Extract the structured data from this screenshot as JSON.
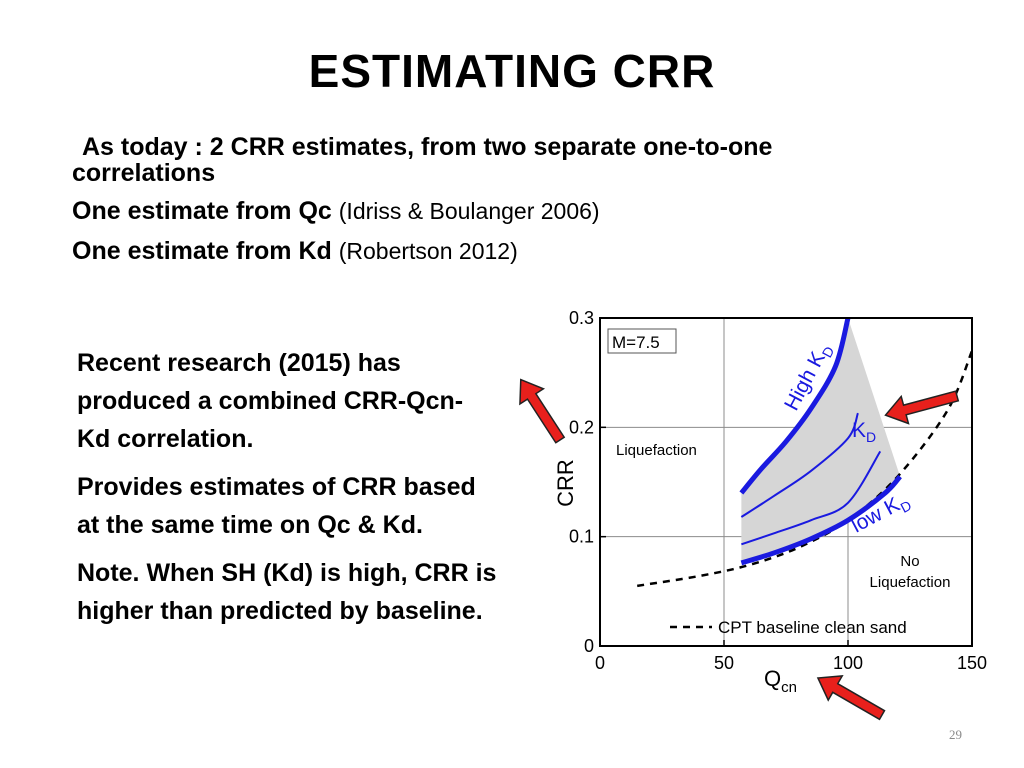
{
  "slide": {
    "title": "ESTIMATING  CRR",
    "intro": {
      "line1": "As today : 2 CRR estimates, from two separate one-to-one",
      "line2": "correlations",
      "qc_label": "One estimate from Qc",
      "qc_ref": "(Idriss & Boulanger 2006)",
      "kd_label": "One estimate from Kd",
      "kd_ref": "(Robertson 2012)"
    },
    "bullets": [
      "Recent research (2015) has produced a combined CRR-Qcn-Kd correlation.",
      "Provides estimates of CRR based at the same time on Qc & Kd.",
      "Note. When SH (Kd) is high, CRR is higher than predicted by baseline."
    ],
    "page_number": "29"
  },
  "colors": {
    "curve_blue": "#1a1ae0",
    "shade_gray": "#d6d6d6",
    "arrow_red": "#e8201c"
  },
  "chart_data": {
    "type": "line",
    "xlabel": "Q",
    "xlabel_sub": "cn",
    "ylabel": "CRR",
    "xlim": [
      0,
      150
    ],
    "ylim": [
      0,
      0.3
    ],
    "x_ticks": [
      "0",
      "50",
      "100",
      "150"
    ],
    "y_ticks": [
      "0",
      "0.1",
      "0.2",
      "0.3"
    ],
    "grid": true,
    "annotations": {
      "magnitude": "M=7.5",
      "liquefaction": "Liquefaction",
      "no_liq_1": "No",
      "no_liq_2": "Liquefaction",
      "high_kd": "High K",
      "kd": "K",
      "low_kd": "low K",
      "kd_sub": "D"
    },
    "legend": {
      "position": "bottom",
      "baseline": "CPT baseline clean sand"
    },
    "series": [
      {
        "name": "CPT baseline clean sand",
        "style": "dashed",
        "x": [
          15,
          40,
          60,
          80,
          100,
          120,
          140,
          150
        ],
        "y": [
          0.055,
          0.064,
          0.074,
          0.09,
          0.115,
          0.155,
          0.215,
          0.27
        ]
      },
      {
        "name": "High K",
        "style": "thick",
        "x": [
          57,
          65,
          75,
          85,
          95,
          100
        ],
        "y": [
          0.14,
          0.162,
          0.187,
          0.217,
          0.256,
          0.3
        ]
      },
      {
        "name": "",
        "style": "thin",
        "x": [
          57,
          70,
          85,
          100,
          104
        ],
        "y": [
          0.118,
          0.137,
          0.16,
          0.19,
          0.213
        ]
      },
      {
        "name": "",
        "style": "thin",
        "x": [
          57,
          70,
          85,
          100,
          113
        ],
        "y": [
          0.093,
          0.103,
          0.115,
          0.131,
          0.178
        ]
      },
      {
        "name": "low K",
        "style": "thick",
        "x": [
          57,
          70,
          85,
          100,
          115,
          121
        ],
        "y": [
          0.076,
          0.085,
          0.098,
          0.115,
          0.14,
          0.155
        ]
      }
    ],
    "shaded_region": {
      "x": [
        57,
        65,
        75,
        85,
        95,
        100,
        121,
        115,
        100,
        85,
        70,
        57
      ],
      "y": [
        0.14,
        0.162,
        0.187,
        0.217,
        0.256,
        0.3,
        0.155,
        0.14,
        0.115,
        0.098,
        0.085,
        0.076
      ]
    }
  }
}
